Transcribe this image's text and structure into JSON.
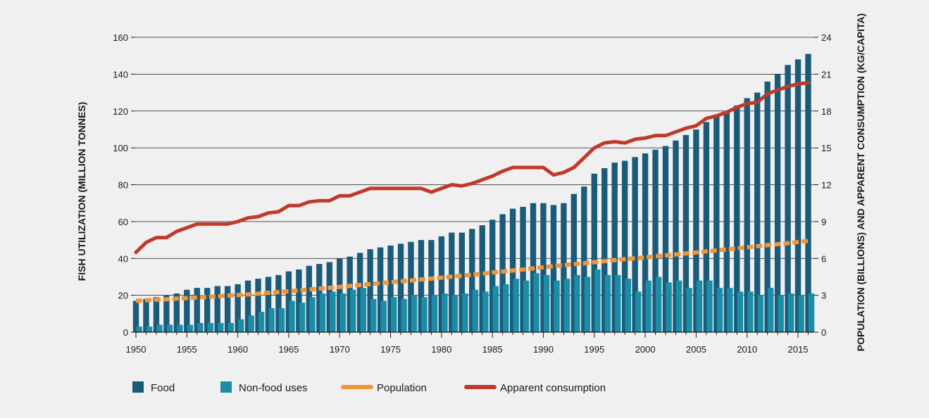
{
  "chart_data": {
    "type": "bar+line",
    "title": "",
    "xlabel": "",
    "ylabel": "FISH UTILIZATION (MILLION TONNES)",
    "y2label": "POPULATION (BILLIONS) AND APPARENT CONSUMPTION (KG/CAPITA)",
    "xlim": [
      1950,
      2016
    ],
    "ylim": [
      0,
      160
    ],
    "y2lim": [
      0,
      24
    ],
    "x_ticks": [
      1950,
      1955,
      1960,
      1965,
      1970,
      1975,
      1980,
      1985,
      1990,
      1995,
      2000,
      2005,
      2010,
      2015
    ],
    "y_ticks": [
      0,
      20,
      40,
      60,
      80,
      100,
      120,
      140,
      160
    ],
    "y2_ticks": [
      0,
      3,
      6,
      9,
      12,
      15,
      18,
      21,
      24
    ],
    "years": [
      1950,
      1951,
      1952,
      1953,
      1954,
      1955,
      1956,
      1957,
      1958,
      1959,
      1960,
      1961,
      1962,
      1963,
      1964,
      1965,
      1966,
      1967,
      1968,
      1969,
      1970,
      1971,
      1972,
      1973,
      1974,
      1975,
      1976,
      1977,
      1978,
      1979,
      1980,
      1981,
      1982,
      1983,
      1984,
      1985,
      1986,
      1987,
      1988,
      1989,
      1990,
      1991,
      1992,
      1993,
      1994,
      1995,
      1996,
      1997,
      1998,
      1999,
      2000,
      2001,
      2002,
      2003,
      2004,
      2005,
      2006,
      2007,
      2008,
      2009,
      2010,
      2011,
      2012,
      2013,
      2014,
      2015,
      2016
    ],
    "series": [
      {
        "name": "Food",
        "kind": "bar",
        "color": "#1b5b7a",
        "values": [
          17,
          18,
          19,
          20,
          21,
          23,
          24,
          24,
          25,
          25,
          26,
          28,
          29,
          30,
          31,
          33,
          34,
          36,
          37,
          38,
          40,
          41,
          43,
          45,
          46,
          47,
          48,
          49,
          50,
          50,
          52,
          54,
          54,
          56,
          58,
          61,
          64,
          67,
          68,
          70,
          70,
          69,
          70,
          75,
          79,
          86,
          89,
          92,
          93,
          95,
          97,
          99,
          101,
          104,
          107,
          110,
          114,
          117,
          120,
          123,
          127,
          130,
          136,
          140,
          145,
          148,
          151
        ]
      },
      {
        "name": "Non-food uses",
        "kind": "bar",
        "color": "#1b8da8",
        "values": [
          3,
          3,
          4,
          4,
          4,
          4,
          5,
          5,
          5,
          5,
          7,
          9,
          11,
          13,
          13,
          17,
          16,
          19,
          21,
          22,
          21,
          23,
          24,
          18,
          17,
          19,
          18,
          20,
          19,
          20,
          21,
          20,
          21,
          23,
          22,
          25,
          26,
          29,
          28,
          32,
          31,
          28,
          29,
          31,
          30,
          34,
          31,
          31,
          29,
          22,
          28,
          30,
          27,
          28,
          24,
          28,
          28,
          24,
          24,
          22,
          22,
          20,
          24,
          20,
          21,
          20,
          21
        ]
      },
      {
        "name": "Population",
        "kind": "line",
        "axis": "y2",
        "color": "#f0963a",
        "values": [
          2.55,
          2.6,
          2.64,
          2.68,
          2.73,
          2.77,
          2.82,
          2.87,
          2.92,
          2.97,
          3.02,
          3.07,
          3.13,
          3.2,
          3.26,
          3.33,
          3.4,
          3.47,
          3.54,
          3.61,
          3.68,
          3.76,
          3.84,
          3.91,
          3.99,
          4.06,
          4.14,
          4.21,
          4.29,
          4.36,
          4.44,
          4.52,
          4.6,
          4.68,
          4.76,
          4.85,
          4.93,
          5.02,
          5.1,
          5.19,
          5.28,
          5.37,
          5.45,
          5.53,
          5.61,
          5.7,
          5.78,
          5.86,
          5.94,
          6.01,
          6.09,
          6.17,
          6.25,
          6.33,
          6.41,
          6.49,
          6.57,
          6.65,
          6.74,
          6.82,
          6.91,
          6.99,
          7.08,
          7.16,
          7.24,
          7.34,
          7.43
        ]
      },
      {
        "name": "Apparent consumption",
        "kind": "line",
        "axis": "y2",
        "color": "#c0392b",
        "values": [
          6.5,
          7.3,
          7.7,
          7.7,
          8.2,
          8.5,
          8.8,
          8.8,
          8.8,
          8.8,
          9.0,
          9.3,
          9.4,
          9.7,
          9.8,
          10.3,
          10.3,
          10.6,
          10.7,
          10.7,
          11.1,
          11.1,
          11.4,
          11.7,
          11.7,
          11.7,
          11.7,
          11.7,
          11.7,
          11.4,
          11.7,
          12.0,
          11.9,
          12.1,
          12.4,
          12.7,
          13.1,
          13.4,
          13.4,
          13.4,
          13.4,
          12.8,
          13.0,
          13.4,
          14.2,
          15.0,
          15.4,
          15.5,
          15.4,
          15.7,
          15.8,
          16.0,
          16.0,
          16.3,
          16.6,
          16.8,
          17.4,
          17.6,
          17.9,
          18.3,
          18.6,
          18.7,
          19.4,
          19.7,
          20.0,
          20.2,
          20.3
        ]
      }
    ],
    "legend": {
      "placement": "bottom",
      "items": [
        {
          "label": "Food",
          "swatch": "square",
          "color": "#1b5b7a"
        },
        {
          "label": "Non-food uses",
          "swatch": "square",
          "color": "#1b8da8"
        },
        {
          "label": "Population",
          "swatch": "line",
          "color": "#f0963a"
        },
        {
          "label": "Apparent consumption",
          "swatch": "line",
          "color": "#c0392b"
        }
      ]
    }
  }
}
